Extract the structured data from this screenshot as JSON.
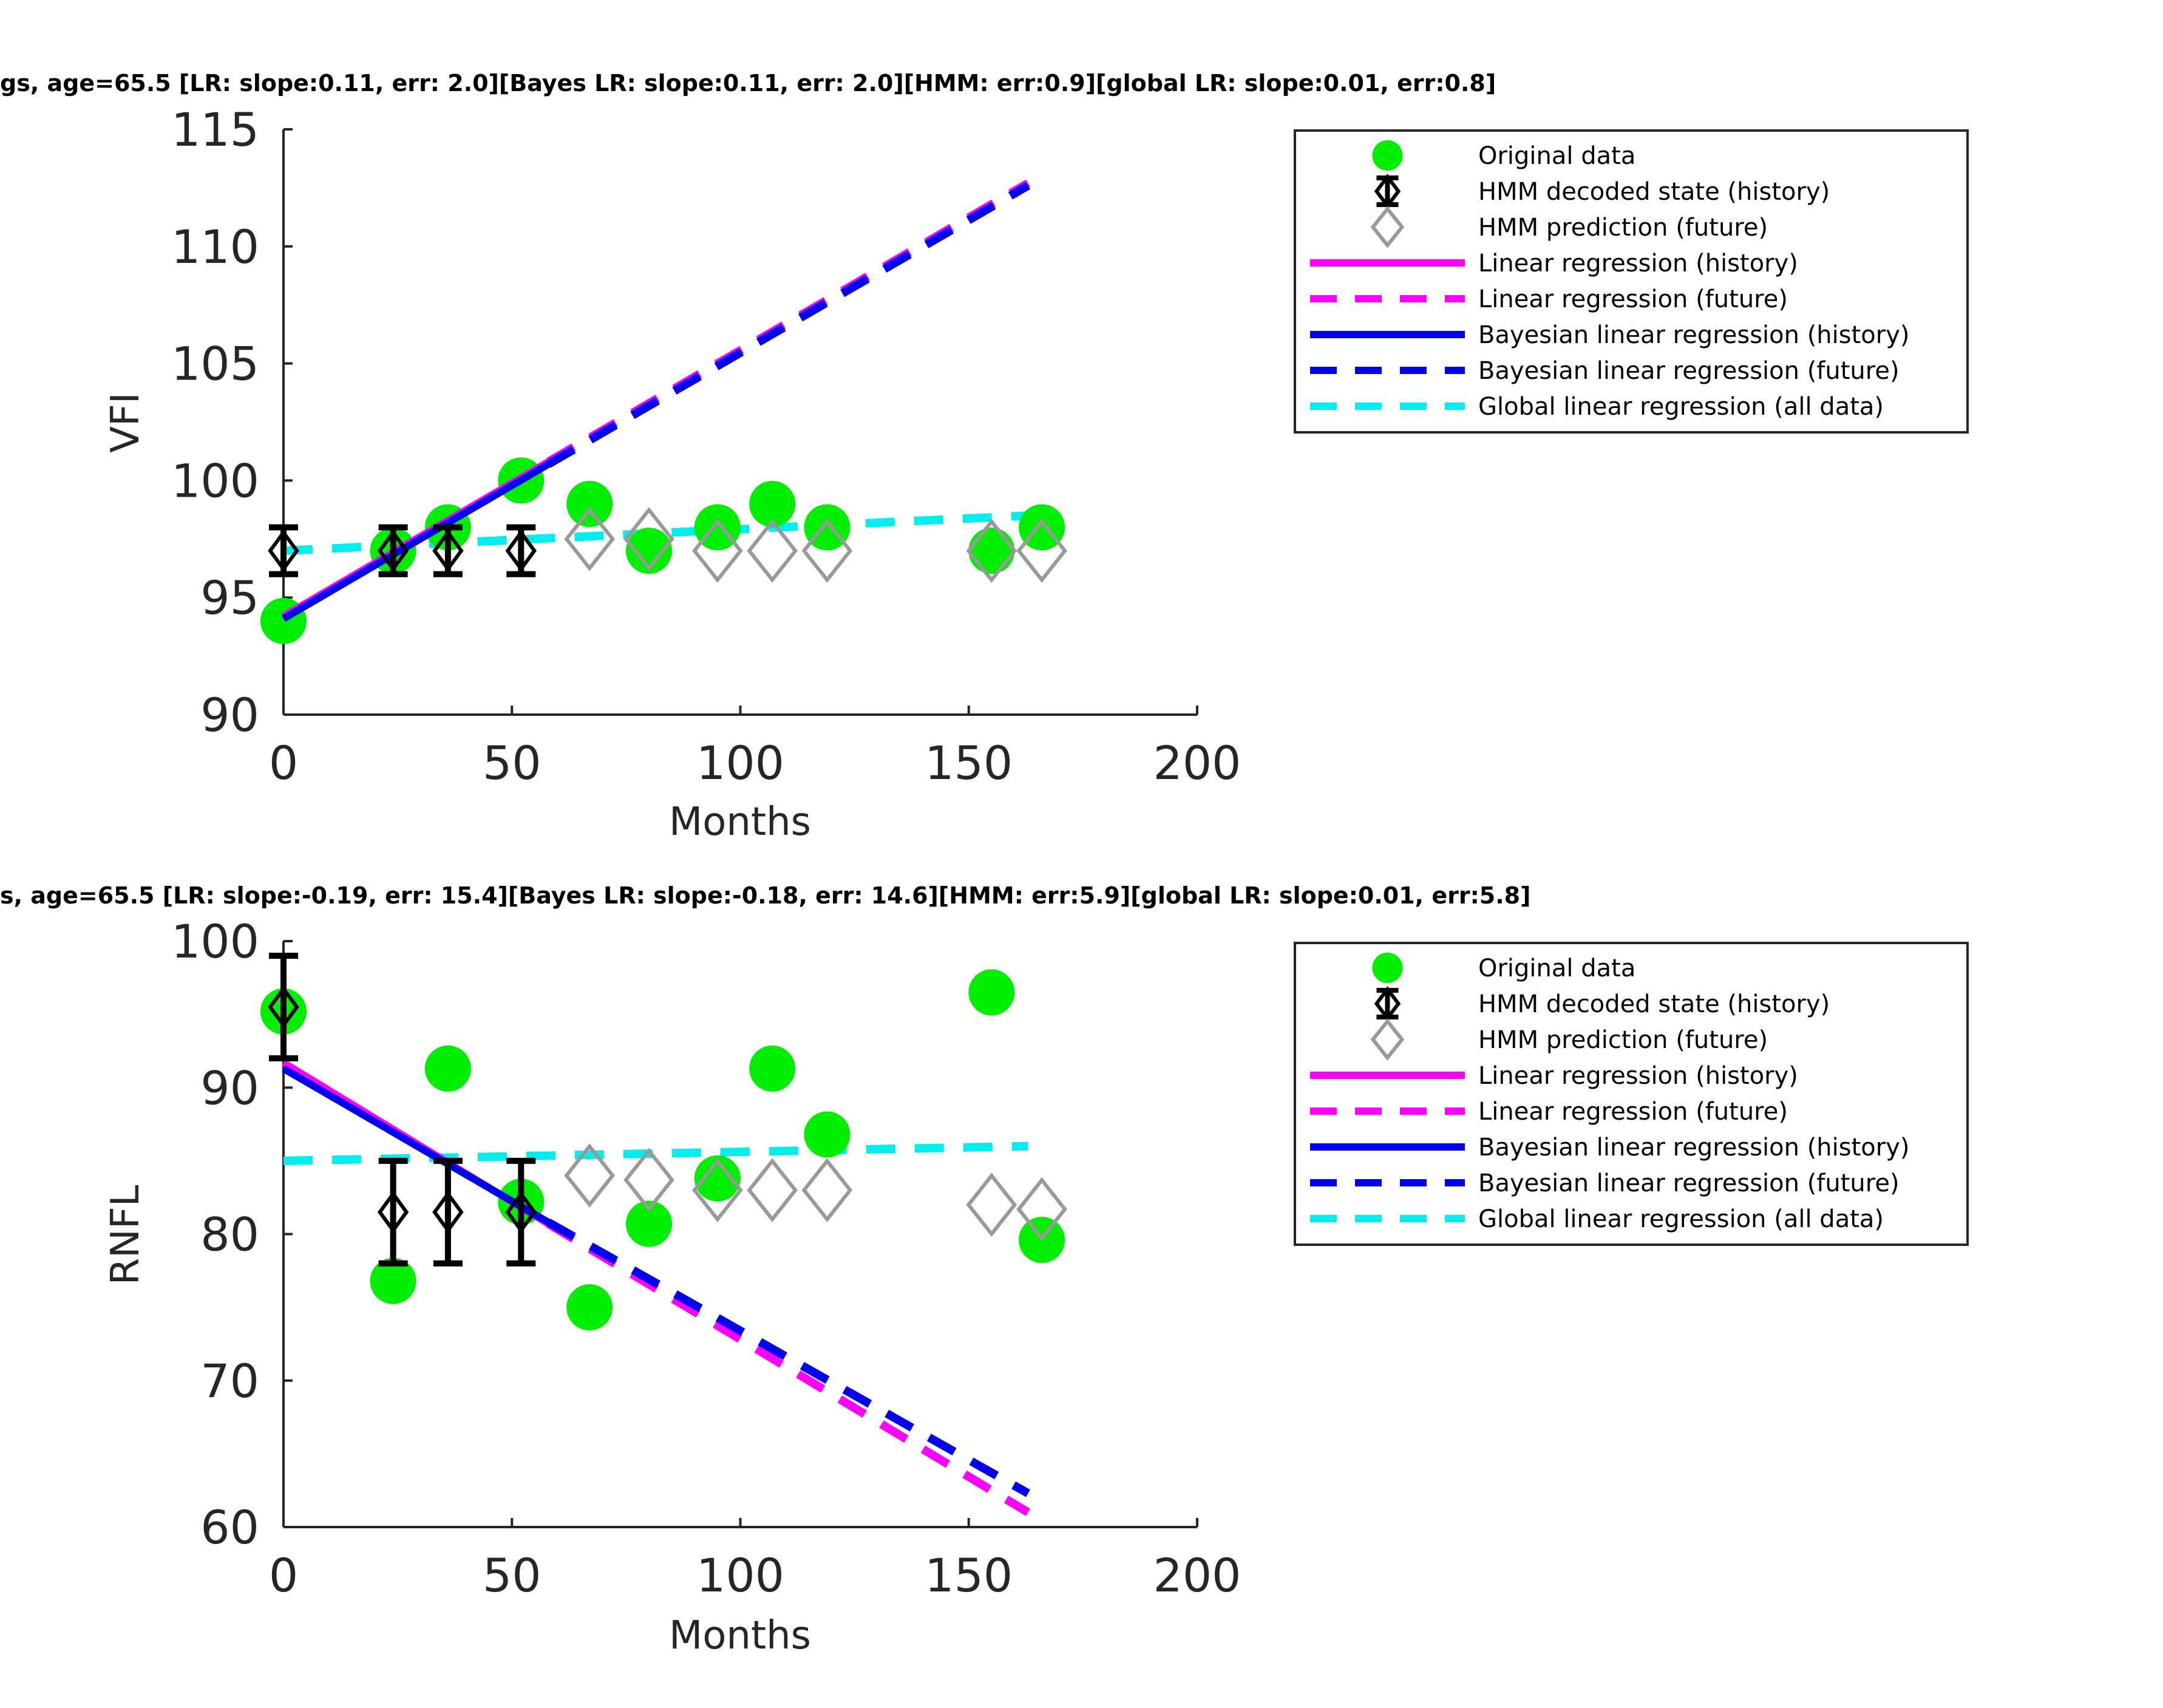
{
  "chart_data": [
    {
      "type": "line",
      "title": "gs, age=65.5 [LR: slope:0.11, err: 2.0][Bayes LR: slope:0.11, err: 2.0][HMM: err:0.9][global LR: slope:0.01, err:0.8]",
      "xlabel": "Months",
      "ylabel": "VFI",
      "xlim": [
        0,
        200
      ],
      "ylim": [
        90,
        115
      ],
      "xticks": [
        "0",
        "50",
        "100",
        "150",
        "200"
      ],
      "yticks": [
        "90",
        "95",
        "100",
        "105",
        "110",
        "115"
      ],
      "grid": false,
      "legend_position": "outside-right",
      "legend": [
        "Original data",
        "HMM decoded state (history)",
        "HMM prediction (future)",
        "Linear regression (history)",
        "Linear regression (future)",
        "Bayesian linear regression (history)",
        "Bayesian linear regression (future)",
        "Global linear regression (all data)"
      ],
      "original_data": {
        "x": [
          0,
          24,
          36,
          52,
          67,
          80,
          95,
          107,
          119,
          155,
          166
        ],
        "y": [
          94,
          97,
          98,
          100,
          99,
          97,
          98,
          99,
          98,
          97,
          98
        ]
      },
      "hmm_history": {
        "x": [
          0,
          24,
          36,
          52
        ],
        "y": [
          97,
          97,
          97,
          97
        ],
        "err_low": [
          96,
          96,
          96,
          96
        ],
        "err_high": [
          98,
          98,
          98,
          98
        ]
      },
      "hmm_future": {
        "x": [
          67,
          80,
          95,
          107,
          119,
          155,
          166
        ],
        "y": [
          97.5,
          97.5,
          97,
          97,
          97,
          97,
          97
        ]
      },
      "lr_history": {
        "x": [
          0,
          58
        ],
        "y": [
          94.2,
          100.8
        ]
      },
      "lr_future": {
        "x": [
          58,
          163
        ],
        "y": [
          100.8,
          112.7
        ]
      },
      "blr_history": {
        "x": [
          0,
          58
        ],
        "y": [
          94.1,
          100.7
        ]
      },
      "blr_future": {
        "x": [
          58,
          163
        ],
        "y": [
          100.7,
          112.6
        ]
      },
      "global_lr": {
        "x": [
          0,
          163
        ],
        "y": [
          97.0,
          98.5
        ]
      },
      "colors": {
        "original": "#00ee00",
        "hmm_history": "#000000",
        "hmm_future": "#999999",
        "lr": "#ff00ff",
        "blr": "#0000ee",
        "global": "#00eeee"
      }
    },
    {
      "type": "line",
      "title": "s, age=65.5 [LR: slope:-0.19, err: 15.4][Bayes LR: slope:-0.18, err: 14.6][HMM: err:5.9][global LR: slope:0.01, err:5.8]",
      "xlabel": "Months",
      "ylabel": "RNFL",
      "xlim": [
        0,
        200
      ],
      "ylim": [
        60,
        100
      ],
      "xticks": [
        "0",
        "50",
        "100",
        "150",
        "200"
      ],
      "yticks": [
        "60",
        "70",
        "80",
        "90",
        "100"
      ],
      "grid": false,
      "legend_position": "outside-right",
      "legend": [
        "Original data",
        "HMM decoded state (history)",
        "HMM prediction (future)",
        "Linear regression (history)",
        "Linear regression (future)",
        "Bayesian linear regression (history)",
        "Bayesian linear regression (future)",
        "Global linear regression (all data)"
      ],
      "original_data": {
        "x": [
          0,
          24,
          36,
          52,
          67,
          80,
          95,
          107,
          119,
          155,
          166
        ],
        "y": [
          95.2,
          76.8,
          91.3,
          82.2,
          75.0,
          80.7,
          83.8,
          91.3,
          86.8,
          96.5,
          79.6
        ]
      },
      "hmm_history": {
        "x": [
          0,
          24,
          36,
          52
        ],
        "y": [
          95.5,
          81.5,
          81.5,
          81.5
        ],
        "err_low": [
          92,
          78,
          78,
          78
        ],
        "err_high": [
          99,
          85,
          85,
          85
        ]
      },
      "hmm_future": {
        "x": [
          67,
          80,
          95,
          107,
          119,
          155,
          166
        ],
        "y": [
          84.0,
          83.7,
          83.0,
          83.0,
          83.0,
          82.0,
          81.7
        ]
      },
      "lr_history": {
        "x": [
          0,
          58
        ],
        "y": [
          91.7,
          80.7
        ]
      },
      "lr_future": {
        "x": [
          58,
          163
        ],
        "y": [
          80.7,
          61.0
        ]
      },
      "blr_history": {
        "x": [
          0,
          58
        ],
        "y": [
          91.3,
          80.8
        ]
      },
      "blr_future": {
        "x": [
          58,
          163
        ],
        "y": [
          80.8,
          62.3
        ]
      },
      "global_lr": {
        "x": [
          0,
          163
        ],
        "y": [
          85.0,
          86.0
        ]
      },
      "colors": {
        "original": "#00ee00",
        "hmm_history": "#000000",
        "hmm_future": "#999999",
        "lr": "#ff00ff",
        "blr": "#0000ee",
        "global": "#00eeee"
      }
    }
  ]
}
